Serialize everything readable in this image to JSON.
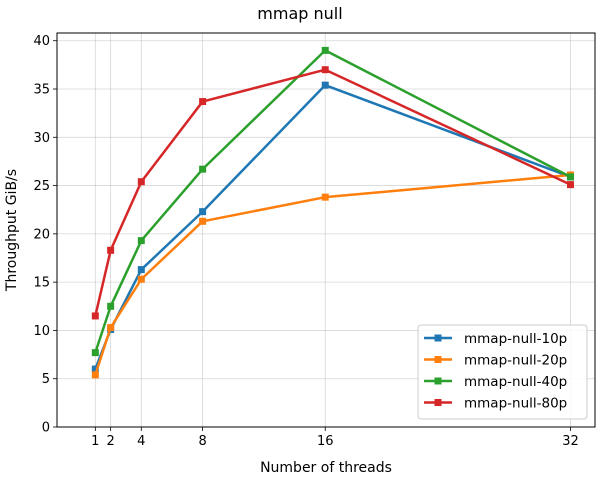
{
  "chart_data": {
    "type": "line",
    "title": "mmap null",
    "xlabel": "Number of threads",
    "ylabel": "Throughput GiB/s",
    "x": [
      1,
      2,
      4,
      8,
      16,
      32
    ],
    "xticks": [
      1,
      2,
      4,
      8,
      16,
      32
    ],
    "yticks": [
      0,
      5,
      10,
      15,
      20,
      25,
      30,
      35,
      40
    ],
    "xlim": [
      -1.5,
      33.6
    ],
    "ylim": [
      0,
      40.8
    ],
    "grid": true,
    "legend_position": "lower-right",
    "series": [
      {
        "name": "mmap-null-10p",
        "color": "#1f77b4",
        "values": [
          6.0,
          10.1,
          16.3,
          22.3,
          35.4,
          25.9
        ]
      },
      {
        "name": "mmap-null-20p",
        "color": "#ff7f0e",
        "values": [
          5.4,
          10.3,
          15.3,
          21.3,
          23.8,
          26.1
        ]
      },
      {
        "name": "mmap-null-40p",
        "color": "#2ca02c",
        "values": [
          7.7,
          12.5,
          19.3,
          26.7,
          39.0,
          25.9
        ]
      },
      {
        "name": "mmap-null-80p",
        "color": "#d62728",
        "values": [
          11.5,
          18.3,
          25.4,
          33.7,
          37.0,
          25.1
        ]
      }
    ]
  }
}
